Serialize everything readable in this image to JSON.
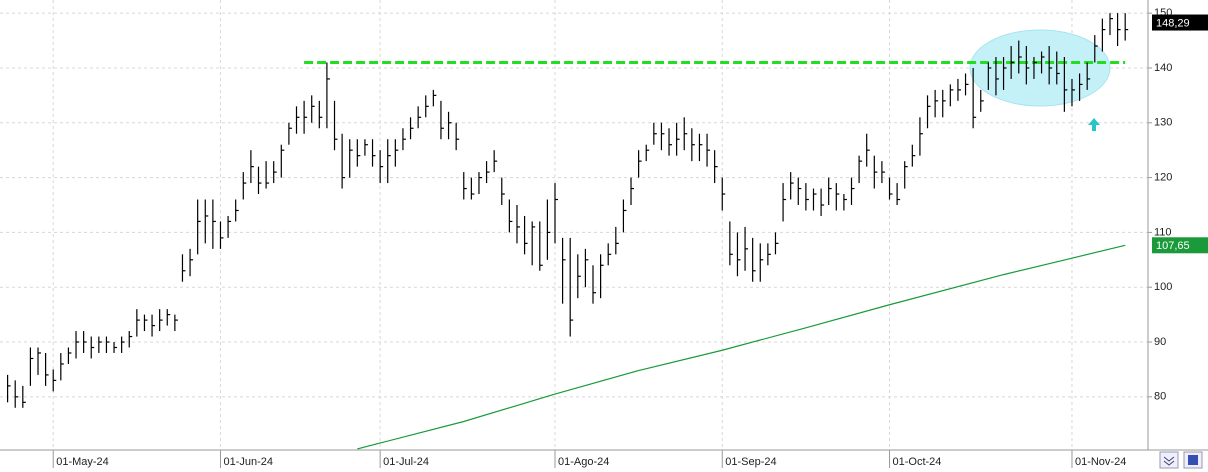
{
  "chart_data": {
    "type": "ohlc",
    "xlim": [
      -1,
      150
    ],
    "ylim": [
      70.3,
      152.4
    ],
    "yticks": [
      80,
      90,
      100,
      110,
      120,
      130,
      140,
      150
    ],
    "xticks": [
      {
        "value": 6,
        "label": "01-May-24"
      },
      {
        "value": 28,
        "label": "01-Jun-24"
      },
      {
        "value": 49,
        "label": "01-Jul-24"
      },
      {
        "value": 72,
        "label": "01-Ago-24"
      },
      {
        "value": 94,
        "label": "01-Sep-24"
      },
      {
        "value": 116,
        "label": "01-Oct-24"
      },
      {
        "value": 140,
        "label": "01-Nov-24"
      }
    ],
    "grid": true,
    "color": "#000000",
    "high": [
      84,
      83,
      82,
      89,
      89,
      88,
      85,
      88,
      89,
      92,
      92,
      91,
      91,
      91,
      90,
      91,
      92,
      96,
      95,
      95,
      96,
      96,
      95,
      106,
      107,
      116,
      116,
      116,
      112,
      113,
      116,
      121,
      125,
      122,
      123,
      123,
      126,
      130,
      133,
      134,
      135,
      134,
      141,
      134,
      128,
      127,
      127,
      127,
      127,
      125,
      127,
      127,
      129,
      131,
      133,
      135,
      136,
      134,
      132,
      130,
      121,
      120,
      121,
      123,
      125,
      120,
      116,
      115,
      113,
      112,
      112,
      116,
      119,
      109,
      109,
      106,
      107,
      104,
      106,
      108,
      111,
      116,
      120,
      125,
      126,
      130,
      130,
      129,
      130,
      131,
      129,
      128,
      128,
      125,
      120,
      112,
      110,
      111,
      109,
      108,
      108,
      110,
      119,
      121,
      120,
      119,
      118,
      118,
      120,
      119,
      117,
      120,
      124,
      128,
      124,
      123,
      120,
      119,
      123,
      126,
      131,
      135,
      136,
      136,
      137,
      138,
      139,
      140,
      136,
      141,
      142,
      142,
      144,
      145,
      144,
      142,
      143,
      144,
      143,
      142,
      138,
      139,
      141,
      146,
      149,
      150,
      150,
      150
    ],
    "low": [
      79,
      78,
      78,
      82,
      84,
      82,
      81,
      83,
      86,
      87,
      88,
      87,
      88,
      88,
      88,
      88,
      89,
      91,
      92,
      91,
      92,
      93,
      92,
      101,
      102,
      106,
      108,
      107,
      107,
      109,
      112,
      116,
      119,
      117,
      118,
      119,
      120,
      126,
      128,
      128,
      130,
      129,
      129,
      125,
      118,
      120,
      122,
      124,
      122,
      119,
      119,
      122,
      125,
      127,
      129,
      131,
      133,
      127,
      127,
      125,
      116,
      116,
      117,
      119,
      121,
      115,
      110,
      108,
      106,
      104,
      103,
      105,
      108,
      97,
      91,
      98,
      100,
      97,
      98,
      104,
      106,
      110,
      115,
      120,
      123,
      126,
      125,
      124,
      124,
      125,
      123,
      123,
      122,
      119,
      114,
      104,
      102,
      103,
      101,
      101,
      104,
      106,
      112,
      116,
      115,
      114,
      114,
      113,
      115,
      114,
      114,
      115,
      119,
      122,
      118,
      119,
      116,
      115,
      118,
      122,
      124,
      129,
      131,
      131,
      133,
      134,
      135,
      129,
      132,
      136,
      135,
      136,
      138,
      139,
      137,
      138,
      139,
      137,
      137,
      132,
      133,
      134,
      136,
      141,
      143,
      146,
      144,
      145
    ],
    "close": [
      82,
      80,
      79,
      87,
      88,
      84,
      83,
      86,
      88,
      90,
      90,
      89,
      90,
      90,
      89,
      90,
      91,
      94,
      94,
      93,
      94,
      95,
      94,
      103,
      105,
      112,
      113,
      112,
      109,
      112,
      114,
      119,
      122,
      119,
      119,
      121,
      125,
      129,
      131,
      131,
      133,
      131,
      138,
      127,
      120,
      125,
      124,
      126,
      124,
      122,
      124,
      125,
      127,
      129,
      131,
      133,
      135,
      129,
      130,
      127,
      118,
      117,
      120,
      121,
      123,
      117,
      112,
      111,
      108,
      111,
      104,
      110,
      116,
      105,
      94,
      102,
      105,
      99,
      104,
      106,
      108,
      114,
      118,
      123,
      125,
      128,
      128,
      126,
      127,
      128,
      126,
      126,
      125,
      122,
      117,
      106,
      105,
      107,
      103,
      105,
      106,
      108,
      116,
      119,
      118,
      116,
      117,
      115,
      118,
      117,
      116,
      118,
      123,
      125,
      121,
      121,
      117,
      116,
      122,
      124,
      128,
      133,
      134,
      134,
      136,
      136,
      137,
      131,
      134,
      140,
      138,
      140,
      141,
      142,
      140,
      141,
      142,
      140,
      139,
      136,
      136,
      137,
      138,
      144,
      147,
      149,
      147,
      147
    ],
    "moving_average": {
      "x": [
        46,
        60,
        72,
        83,
        94,
        105,
        116,
        131,
        140,
        147
      ],
      "values": [
        70.5,
        75.5,
        80.5,
        84.8,
        88.5,
        92.6,
        96.8,
        102.3,
        105.3,
        107.65
      ],
      "color": "#1a9a3a"
    },
    "level": {
      "value": 141,
      "from": 39,
      "to": 147,
      "color": "#22dd22"
    },
    "price_tags": [
      {
        "value": 148.29,
        "label": "148,29",
        "color": "#000000"
      },
      {
        "value": 107.65,
        "label": "107,65",
        "color": "#1a9a3a"
      }
    ]
  }
}
